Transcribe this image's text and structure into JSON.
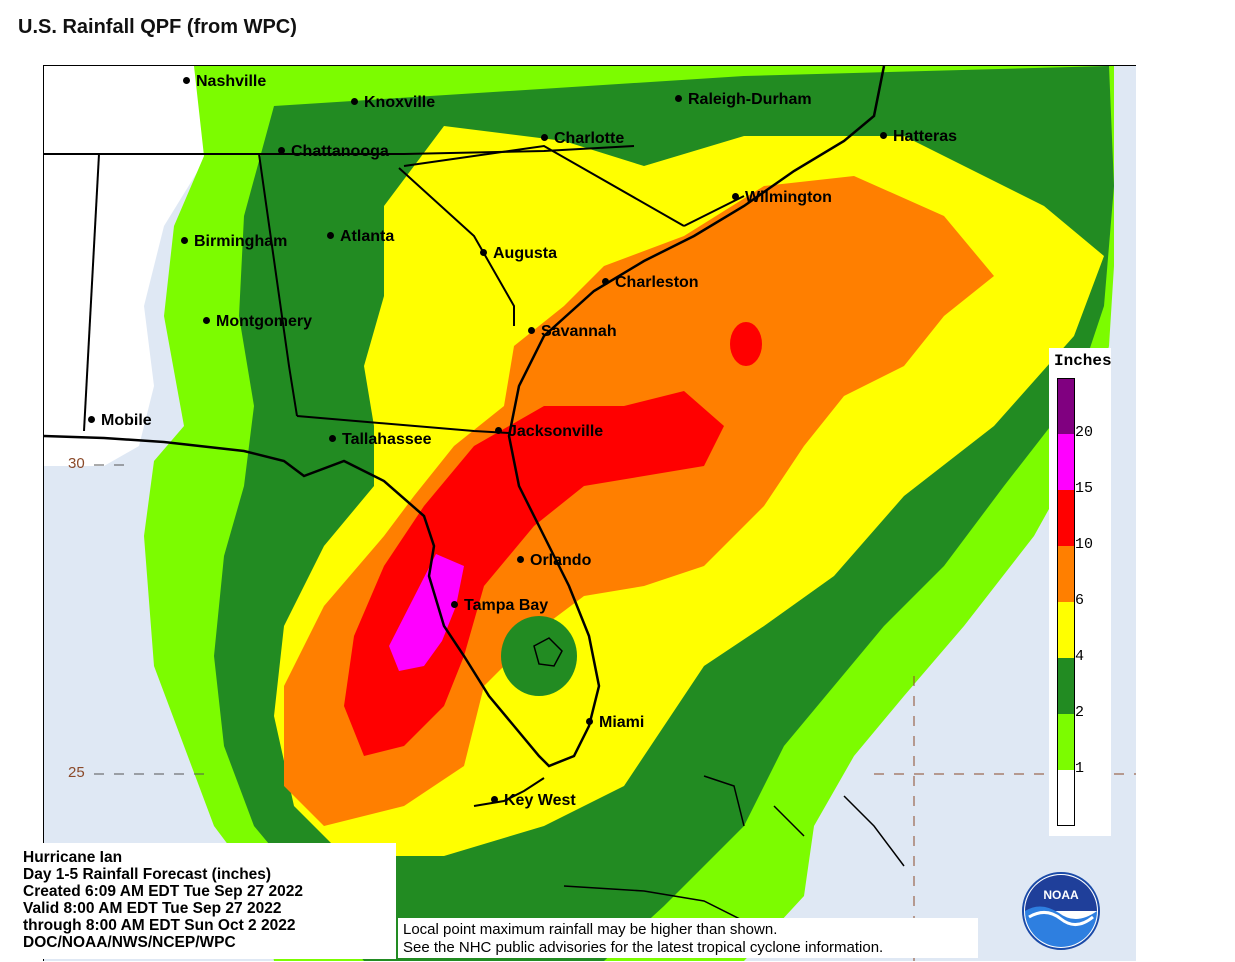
{
  "page_title": "U.S. Rainfall QPF (from WPC)",
  "cities": [
    {
      "name": "Nashville"
    },
    {
      "name": "Knoxville"
    },
    {
      "name": "Raleigh-Durham"
    },
    {
      "name": "Chattanooga"
    },
    {
      "name": "Charlotte"
    },
    {
      "name": "Hatteras"
    },
    {
      "name": "Wilmington"
    },
    {
      "name": "Birmingham"
    },
    {
      "name": "Atlanta"
    },
    {
      "name": "Augusta"
    },
    {
      "name": "Charleston"
    },
    {
      "name": "Montgomery"
    },
    {
      "name": "Savannah"
    },
    {
      "name": "Mobile"
    },
    {
      "name": "Tallahassee"
    },
    {
      "name": "Jacksonville"
    },
    {
      "name": "Orlando"
    },
    {
      "name": "Tampa Bay"
    },
    {
      "name": "Miami"
    },
    {
      "name": "Key West"
    }
  ],
  "latitude_labels": {
    "lat30": "30",
    "lat25": "25"
  },
  "legend": {
    "title": "Inches",
    "ticks": [
      "20",
      "15",
      "10",
      "6",
      "4",
      "2",
      "1"
    ],
    "colors": {
      "above_20": "#800080",
      "15_20": "#ff00ff",
      "10_15": "#ff0000",
      "6_10": "#ff7f00",
      "4_6": "#ffff00",
      "2_4": "#228b22",
      "1_2": "#7cfc00",
      "0_1": "#ffffff"
    }
  },
  "info": {
    "line1": "Hurricane Ian",
    "line2": "Day 1-5 Rainfall Forecast (inches)",
    "line3": "Created 6:09 AM EDT Tue Sep 27 2022",
    "line4": "Valid 8:00 AM EDT Tue Sep 27 2022",
    "line5": "through 8:00 AM EDT Sun Oct 2 2022",
    "line6": "DOC/NOAA/NWS/NCEP/WPC"
  },
  "disclaimer": {
    "line1": "Local point maximum rainfall may be higher than shown.",
    "line2": "See the NHC public advisories for the latest tropical cyclone information."
  },
  "logo_text": "NOAA"
}
